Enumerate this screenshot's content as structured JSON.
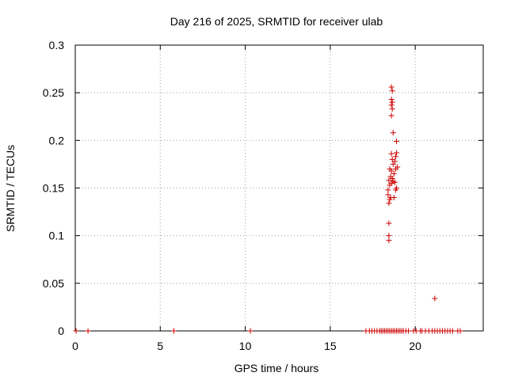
{
  "chart_data": {
    "type": "scatter",
    "title": "Day 216 of 2025, SRMTID for receiver ulab",
    "xlabel": "GPS time / hours",
    "ylabel": "SRMTID / TECUs",
    "xlim": [
      0,
      24
    ],
    "ylim": [
      0,
      0.3
    ],
    "xticks": [
      0,
      5,
      10,
      15,
      20
    ],
    "xtick_labels": [
      "0",
      "5",
      "10",
      "15",
      "20"
    ],
    "yticks": [
      0,
      0.05,
      0.1,
      0.15,
      0.2,
      0.25,
      0.3
    ],
    "ytick_labels": [
      "0",
      "0.05",
      "0.1",
      "0.15",
      "0.2",
      "0.25",
      "0.3"
    ],
    "grid": true,
    "marker": "+",
    "series": [
      {
        "name": "SRMTID",
        "color": "#cc0000",
        "points": [
          [
            0.05,
            0.0
          ],
          [
            0.75,
            0.0
          ],
          [
            5.8,
            0.0
          ],
          [
            10.3,
            0.0
          ],
          [
            17.1,
            0.0
          ],
          [
            17.3,
            0.0
          ],
          [
            17.45,
            0.0
          ],
          [
            17.6,
            0.0
          ],
          [
            17.75,
            0.0
          ],
          [
            17.9,
            0.0
          ],
          [
            18.0,
            0.0
          ],
          [
            18.1,
            0.0
          ],
          [
            18.2,
            0.0
          ],
          [
            18.3,
            0.0
          ],
          [
            18.4,
            0.0
          ],
          [
            18.5,
            0.0
          ],
          [
            18.6,
            0.0
          ],
          [
            18.7,
            0.0
          ],
          [
            18.8,
            0.0
          ],
          [
            18.9,
            0.0
          ],
          [
            19.0,
            0.0
          ],
          [
            19.1,
            0.0
          ],
          [
            19.2,
            0.0
          ],
          [
            19.3,
            0.0
          ],
          [
            19.45,
            0.0
          ],
          [
            19.6,
            0.0
          ],
          [
            19.9,
            0.0
          ],
          [
            20.05,
            0.0
          ],
          [
            20.3,
            0.0
          ],
          [
            20.4,
            0.0
          ],
          [
            20.6,
            0.0
          ],
          [
            20.8,
            0.0
          ],
          [
            21.0,
            0.0
          ],
          [
            21.15,
            0.0
          ],
          [
            21.3,
            0.0
          ],
          [
            21.45,
            0.0
          ],
          [
            21.6,
            0.0
          ],
          [
            21.75,
            0.0
          ],
          [
            21.9,
            0.0
          ],
          [
            22.05,
            0.0
          ],
          [
            22.2,
            0.0
          ],
          [
            22.5,
            0.0
          ],
          [
            22.65,
            0.0
          ],
          [
            21.15,
            0.034
          ],
          [
            18.45,
            0.095
          ],
          [
            18.45,
            0.1
          ],
          [
            18.45,
            0.113
          ],
          [
            18.45,
            0.134
          ],
          [
            18.5,
            0.138
          ],
          [
            18.55,
            0.14
          ],
          [
            18.4,
            0.143
          ],
          [
            18.75,
            0.14
          ],
          [
            18.85,
            0.148
          ],
          [
            18.9,
            0.15
          ],
          [
            18.4,
            0.148
          ],
          [
            18.5,
            0.153
          ],
          [
            18.6,
            0.155
          ],
          [
            18.7,
            0.157
          ],
          [
            18.45,
            0.158
          ],
          [
            18.8,
            0.156
          ],
          [
            18.65,
            0.16
          ],
          [
            18.55,
            0.162
          ],
          [
            18.75,
            0.165
          ],
          [
            18.6,
            0.168
          ],
          [
            18.85,
            0.17
          ],
          [
            18.5,
            0.17
          ],
          [
            18.95,
            0.172
          ],
          [
            18.7,
            0.175
          ],
          [
            18.8,
            0.178
          ],
          [
            18.65,
            0.18
          ],
          [
            18.85,
            0.183
          ],
          [
            18.6,
            0.186
          ],
          [
            18.9,
            0.187
          ],
          [
            18.9,
            0.199
          ],
          [
            18.7,
            0.208
          ],
          [
            18.6,
            0.226
          ],
          [
            18.65,
            0.233
          ],
          [
            18.6,
            0.237
          ],
          [
            18.65,
            0.24
          ],
          [
            18.6,
            0.243
          ],
          [
            18.65,
            0.252
          ],
          [
            18.6,
            0.256
          ]
        ]
      }
    ]
  }
}
